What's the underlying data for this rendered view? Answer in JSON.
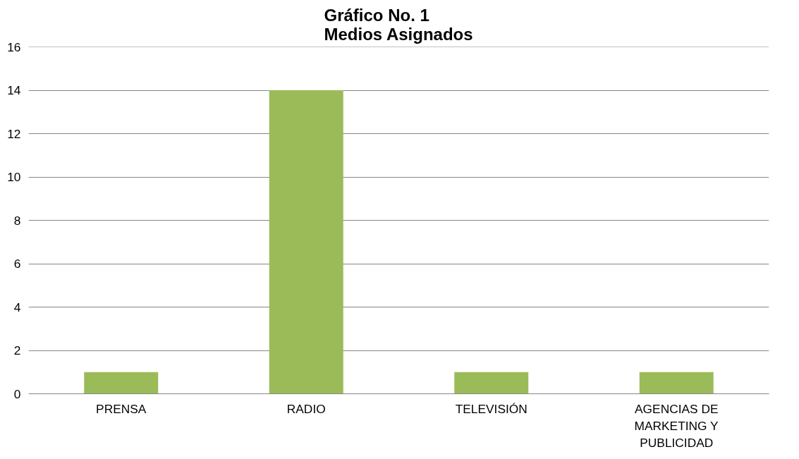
{
  "chart_data": {
    "type": "bar",
    "title": "Gráfico No. 1\nMedios Asignados",
    "categories": [
      "PRENSA",
      "RADIO",
      "TELEVISIÓN",
      "AGENCIAS DE MARKETING Y PUBLICIDAD"
    ],
    "values": [
      1,
      14,
      1,
      1
    ],
    "color": "#9bbb59",
    "ylim": [
      0,
      16
    ],
    "yticks": [
      0,
      2,
      4,
      6,
      8,
      10,
      12,
      14,
      16
    ],
    "grid": "y"
  }
}
